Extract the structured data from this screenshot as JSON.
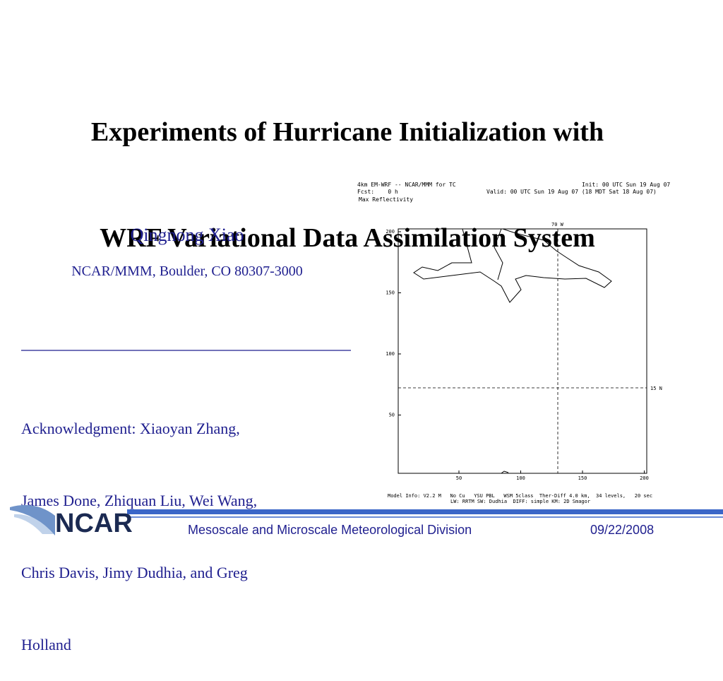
{
  "title": [
    "Experiments of Hurricane Initialization with",
    "WRF Variational Data Assimilation System"
  ],
  "author": {
    "name": "Qingnong Xiao",
    "affiliation": "NCAR/MMM, Boulder, CO 80307-3000"
  },
  "acknowledgment": [
    "Acknowledgment: Xiaoyan Zhang,",
    "James Done, Zhiquan Liu, Wei Wang,",
    "Chris Davis, Jimy Dudhia, and Greg",
    "Holland"
  ],
  "figure": {
    "header_left": [
      "4km EM-WRF -- NCAR/MMM for TC",
      "Fcst:    0 h",
      "Max Reflectivity"
    ],
    "header_right": [
      "Init: 00 UTC Sun 19 Aug 07",
      "Valid: 00 UTC Sun 19 Aug 07 (18 MDT Sat 18 Aug 07)"
    ],
    "xticks": [
      50,
      100,
      150,
      200
    ],
    "yticks": [
      50,
      100,
      150,
      200
    ],
    "meridian_label": "70 W",
    "parallel_label": "15 N",
    "footer": [
      "Model Info: V2.2 M   No Cu   YSU PBL   WSM 5class  Ther-Diff 4.0 km,  34 levels,   20 sec",
      "LW: RRTM SW: Dudhia  DIFF: simple KM: 2D Smagor"
    ]
  },
  "footer": {
    "logo": "NCAR",
    "division": "Mesoscale and Microscale Meteorological Division",
    "date": "09/22/2008"
  }
}
